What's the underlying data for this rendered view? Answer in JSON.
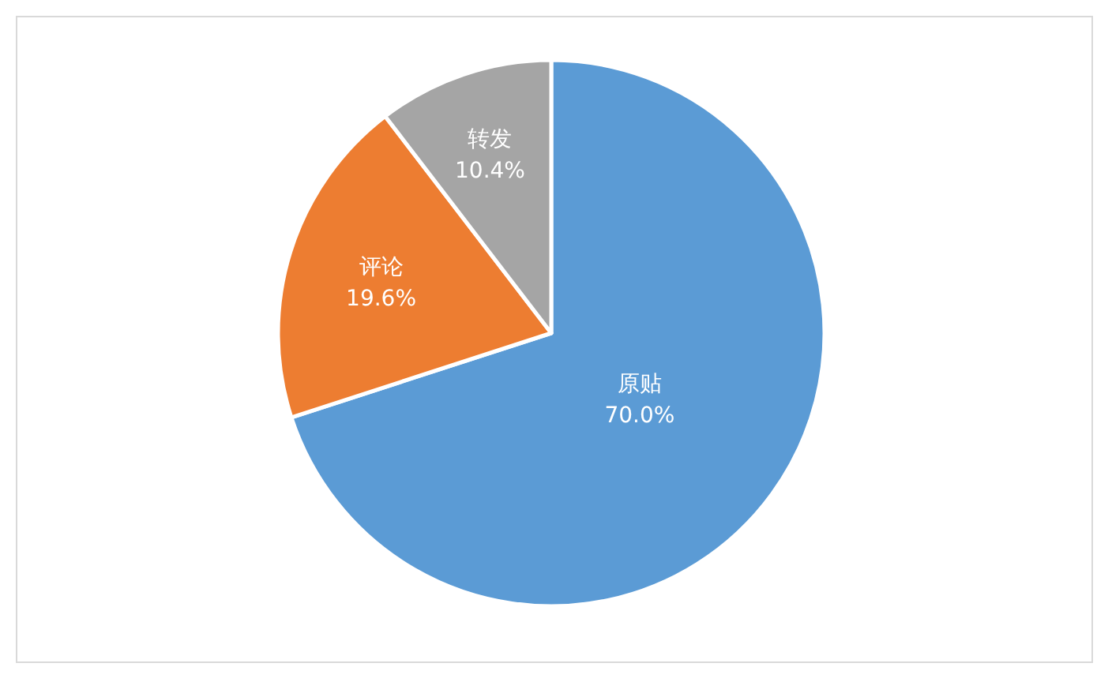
{
  "chart_data": {
    "type": "pie",
    "categories": [
      "原贴",
      "评论",
      "转发"
    ],
    "values": [
      70.0,
      19.6,
      10.4
    ],
    "value_labels": [
      "70.0%",
      "19.6%",
      "10.4%"
    ],
    "colors": [
      "#5b9bd5",
      "#ed7d31",
      "#a5a5a5"
    ],
    "legend": false
  }
}
